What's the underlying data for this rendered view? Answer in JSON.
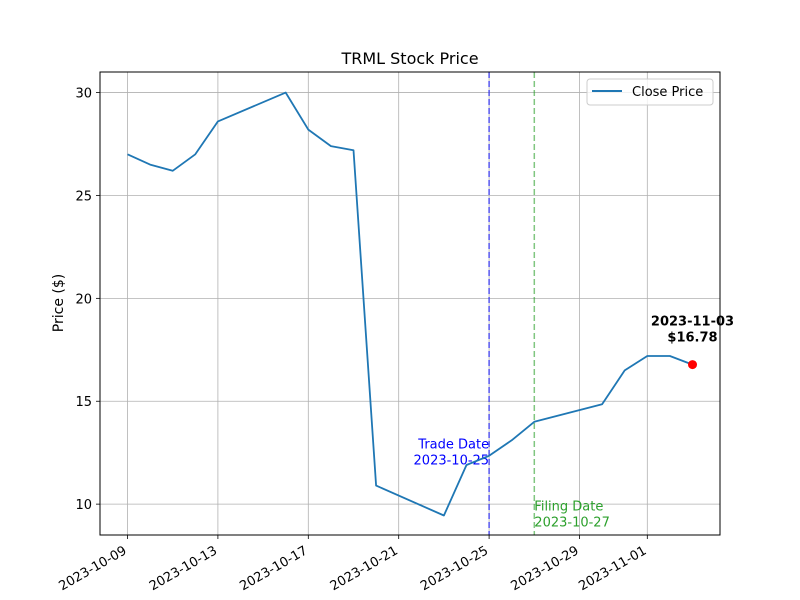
{
  "chart_data": {
    "type": "line",
    "title": "TRML Stock Price",
    "xlabel": "",
    "ylabel": "Price ($)",
    "xlim": [
      "2023-10-07T18:48",
      "2023-11-04T05:12"
    ],
    "ylim": [
      8.5,
      31.0
    ],
    "grid": true,
    "legend_position": "top-right",
    "x_ticks": [
      "2023-10-09",
      "2023-10-13",
      "2023-10-17",
      "2023-10-21",
      "2023-10-25",
      "2023-10-29",
      "2023-11-01"
    ],
    "y_ticks": [
      10,
      15,
      20,
      25,
      30
    ],
    "series": [
      {
        "name": "Close Price",
        "color": "#1f77b4",
        "x": [
          "2023-10-09",
          "2023-10-10",
          "2023-10-11",
          "2023-10-12",
          "2023-10-13",
          "2023-10-16",
          "2023-10-17",
          "2023-10-18",
          "2023-10-19",
          "2023-10-20",
          "2023-10-23",
          "2023-10-24",
          "2023-10-25",
          "2023-10-26",
          "2023-10-27",
          "2023-10-30",
          "2023-10-31",
          "2023-11-01",
          "2023-11-02",
          "2023-11-03"
        ],
        "y": [
          27.0,
          26.5,
          26.2,
          27.0,
          28.6,
          30.0,
          28.2,
          27.4,
          27.2,
          10.9,
          9.45,
          11.9,
          12.35,
          13.1,
          14.0,
          14.85,
          16.5,
          17.2,
          17.2,
          16.78
        ]
      }
    ],
    "vlines": [
      {
        "date": "2023-10-25",
        "color": "#0000ff",
        "label_line1": "Trade Date",
        "label_line2": "2023-10-25",
        "label_y": 12.5
      },
      {
        "date": "2023-10-27",
        "color": "#2ca02c",
        "label_line1": "Filing Date",
        "label_line2": "2023-10-27",
        "label_y": 9.5
      }
    ],
    "last_point": {
      "date": "2023-11-03",
      "value": 16.78,
      "color": "#ff0000",
      "label_line1": "2023-11-03",
      "label_line2": "$16.78"
    }
  }
}
